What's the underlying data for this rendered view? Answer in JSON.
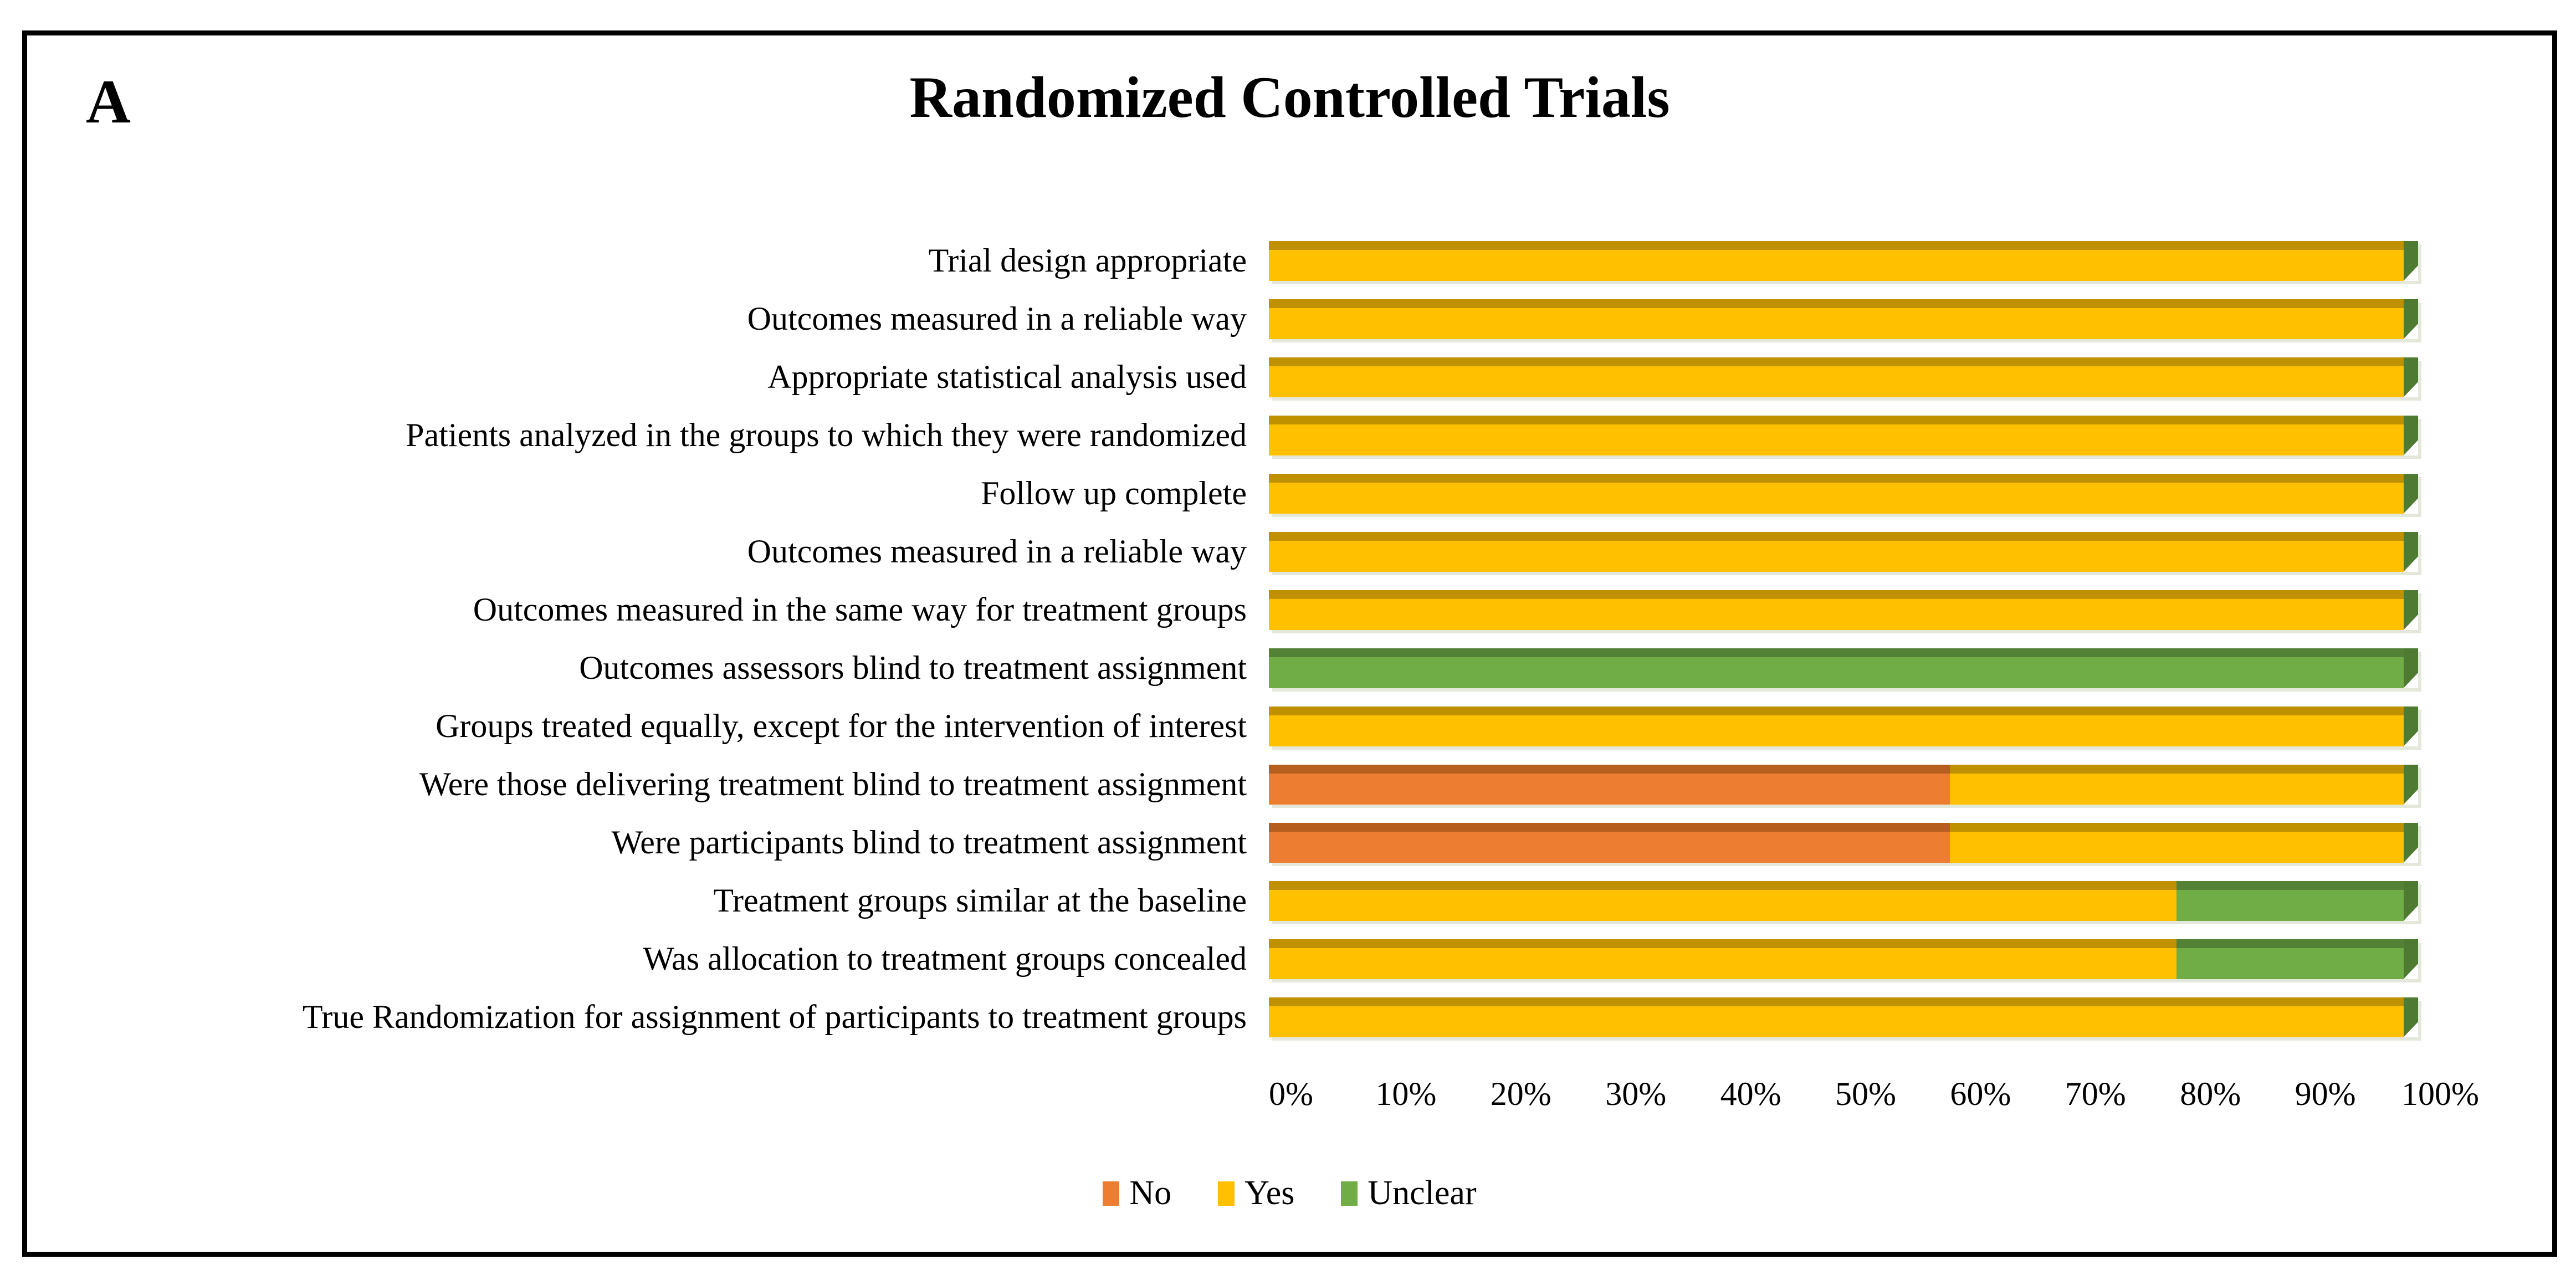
{
  "panel_label": "A",
  "title": "Randomized Controlled Trials",
  "legend": [
    {
      "label": "No"
    },
    {
      "label": "Yes"
    },
    {
      "label": "Unclear"
    }
  ],
  "series_colors": {
    "No": {
      "main": "#ED7D31",
      "dark": "#B55E1E"
    },
    "Yes": {
      "main": "#FFC000",
      "dark": "#BF9000"
    },
    "Unclear": {
      "main": "#70AD47",
      "dark": "#538135"
    }
  },
  "cap_color": "#4E7A31",
  "chart_data": {
    "type": "bar",
    "orientation": "horizontal",
    "stacked": true,
    "units": "percent",
    "title": "Randomized Controlled Trials",
    "xlabel": "",
    "ylabel": "",
    "xlim": [
      0,
      100
    ],
    "tick_step": 10,
    "grid": false,
    "legend_position": "bottom",
    "x_ticks": [
      "0%",
      "10%",
      "20%",
      "30%",
      "40%",
      "50%",
      "60%",
      "70%",
      "80%",
      "90%",
      "100%"
    ],
    "categories": [
      "Trial design appropriate",
      "Outcomes measured in a reliable way",
      "Appropriate statistical analysis used",
      "Patients analyzed in the groups to which they were randomized",
      "Follow up complete",
      "Outcomes measured in a reliable way",
      "Outcomes measured in the same way for treatment groups",
      "Outcomes assessors blind to treatment assignment",
      "Groups treated equally, except for the intervention of interest",
      "Were those delivering treatment blind to treatment assignment",
      "Were participants blind to treatment assignment",
      "Treatment groups similar at the baseline",
      "Was allocation to treatment groups concealed",
      "True Randomization for assignment of participants to treatment groups"
    ],
    "series": [
      {
        "name": "No",
        "values": [
          0,
          0,
          0,
          0,
          0,
          0,
          0,
          0,
          0,
          60,
          60,
          0,
          0,
          0
        ]
      },
      {
        "name": "Yes",
        "values": [
          100,
          100,
          100,
          100,
          100,
          100,
          100,
          0,
          100,
          40,
          40,
          80,
          80,
          100
        ]
      },
      {
        "name": "Unclear",
        "values": [
          0,
          0,
          0,
          0,
          0,
          0,
          0,
          100,
          0,
          0,
          0,
          20,
          20,
          0
        ]
      }
    ]
  }
}
